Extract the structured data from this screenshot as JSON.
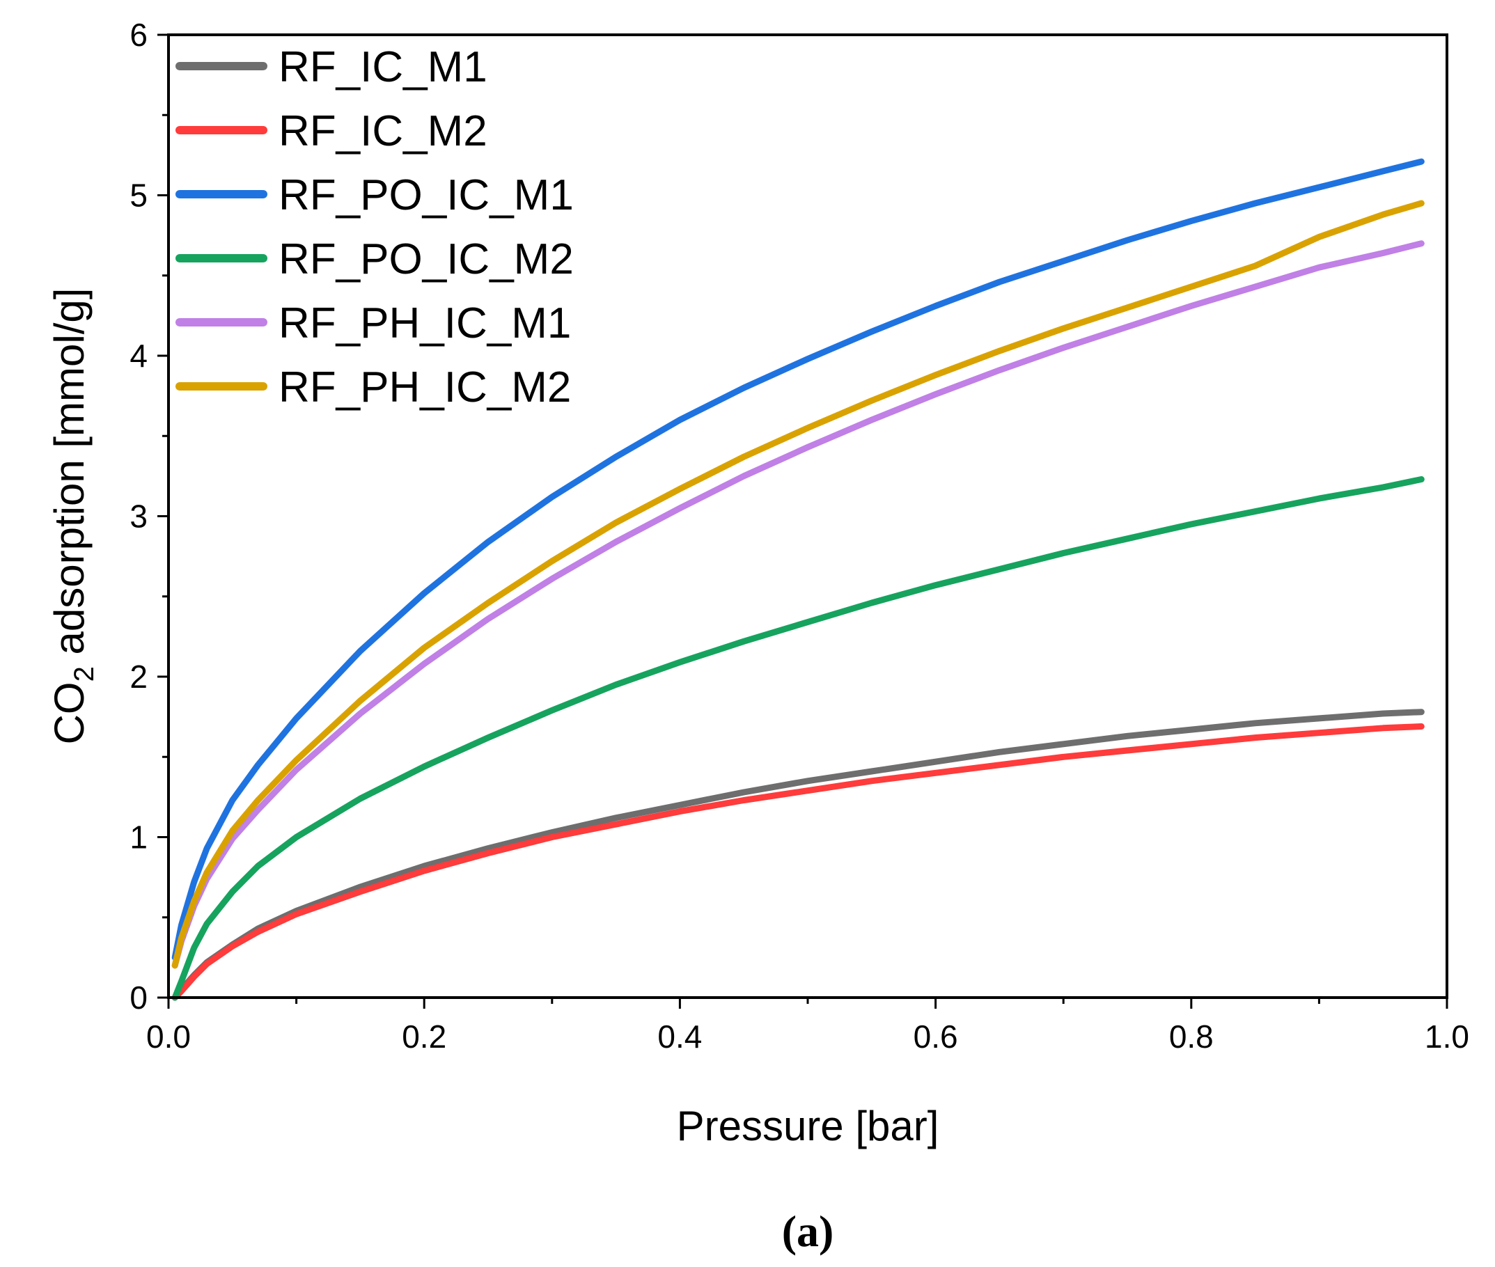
{
  "chart_data": {
    "type": "line",
    "title": "",
    "xlabel": "Pressure [bar]",
    "ylabel_main": "CO",
    "ylabel_sub": "2",
    "ylabel_rest": " adsorption [mmol/g]",
    "xlim": [
      0,
      1.0
    ],
    "ylim": [
      0,
      6
    ],
    "xticks": [
      "0.0",
      "0.2",
      "0.4",
      "0.6",
      "0.8",
      "1.0"
    ],
    "yticks": [
      "0",
      "1",
      "2",
      "3",
      "4",
      "5",
      "6"
    ],
    "legend_position": "top-left",
    "grid": false,
    "caption": "(a)",
    "x": [
      0.005,
      0.01,
      0.02,
      0.03,
      0.05,
      0.07,
      0.1,
      0.15,
      0.2,
      0.25,
      0.3,
      0.35,
      0.4,
      0.45,
      0.5,
      0.55,
      0.6,
      0.65,
      0.7,
      0.75,
      0.8,
      0.85,
      0.9,
      0.95,
      0.98
    ],
    "series": [
      {
        "name": "RF_IC_M1",
        "color": "#6e6e6e",
        "values": [
          0.0,
          0.05,
          0.14,
          0.22,
          0.33,
          0.43,
          0.54,
          0.69,
          0.82,
          0.93,
          1.03,
          1.12,
          1.2,
          1.28,
          1.35,
          1.41,
          1.47,
          1.53,
          1.58,
          1.63,
          1.67,
          1.71,
          1.74,
          1.77,
          1.78
        ]
      },
      {
        "name": "RF_IC_M2",
        "color": "#ff3b3b",
        "values": [
          0.0,
          0.04,
          0.13,
          0.21,
          0.32,
          0.41,
          0.52,
          0.66,
          0.79,
          0.9,
          1.0,
          1.08,
          1.16,
          1.23,
          1.29,
          1.35,
          1.4,
          1.45,
          1.5,
          1.54,
          1.58,
          1.62,
          1.65,
          1.68,
          1.69
        ]
      },
      {
        "name": "RF_PO_IC_M1",
        "color": "#1f73e0",
        "values": [
          0.25,
          0.45,
          0.72,
          0.93,
          1.23,
          1.45,
          1.74,
          2.16,
          2.52,
          2.84,
          3.12,
          3.37,
          3.6,
          3.8,
          3.98,
          4.15,
          4.31,
          4.46,
          4.59,
          4.72,
          4.84,
          4.95,
          5.05,
          5.15,
          5.21
        ]
      },
      {
        "name": "RF_PO_IC_M2",
        "color": "#16a35e",
        "values": [
          0.0,
          0.1,
          0.31,
          0.46,
          0.66,
          0.82,
          1.0,
          1.24,
          1.44,
          1.62,
          1.79,
          1.95,
          2.09,
          2.22,
          2.34,
          2.46,
          2.57,
          2.67,
          2.77,
          2.86,
          2.95,
          3.03,
          3.11,
          3.18,
          3.23
        ]
      },
      {
        "name": "RF_PH_IC_M1",
        "color": "#c080e6",
        "values": [
          0.2,
          0.35,
          0.57,
          0.74,
          0.99,
          1.17,
          1.42,
          1.77,
          2.08,
          2.36,
          2.61,
          2.84,
          3.05,
          3.25,
          3.43,
          3.6,
          3.76,
          3.91,
          4.05,
          4.18,
          4.31,
          4.43,
          4.55,
          4.64,
          4.7
        ]
      },
      {
        "name": "RF_PH_IC_M2",
        "color": "#d9a200",
        "values": [
          0.2,
          0.37,
          0.6,
          0.78,
          1.04,
          1.23,
          1.48,
          1.85,
          2.18,
          2.46,
          2.72,
          2.96,
          3.17,
          3.37,
          3.55,
          3.72,
          3.88,
          4.03,
          4.17,
          4.3,
          4.43,
          4.56,
          4.74,
          4.88,
          4.95
        ]
      }
    ]
  }
}
